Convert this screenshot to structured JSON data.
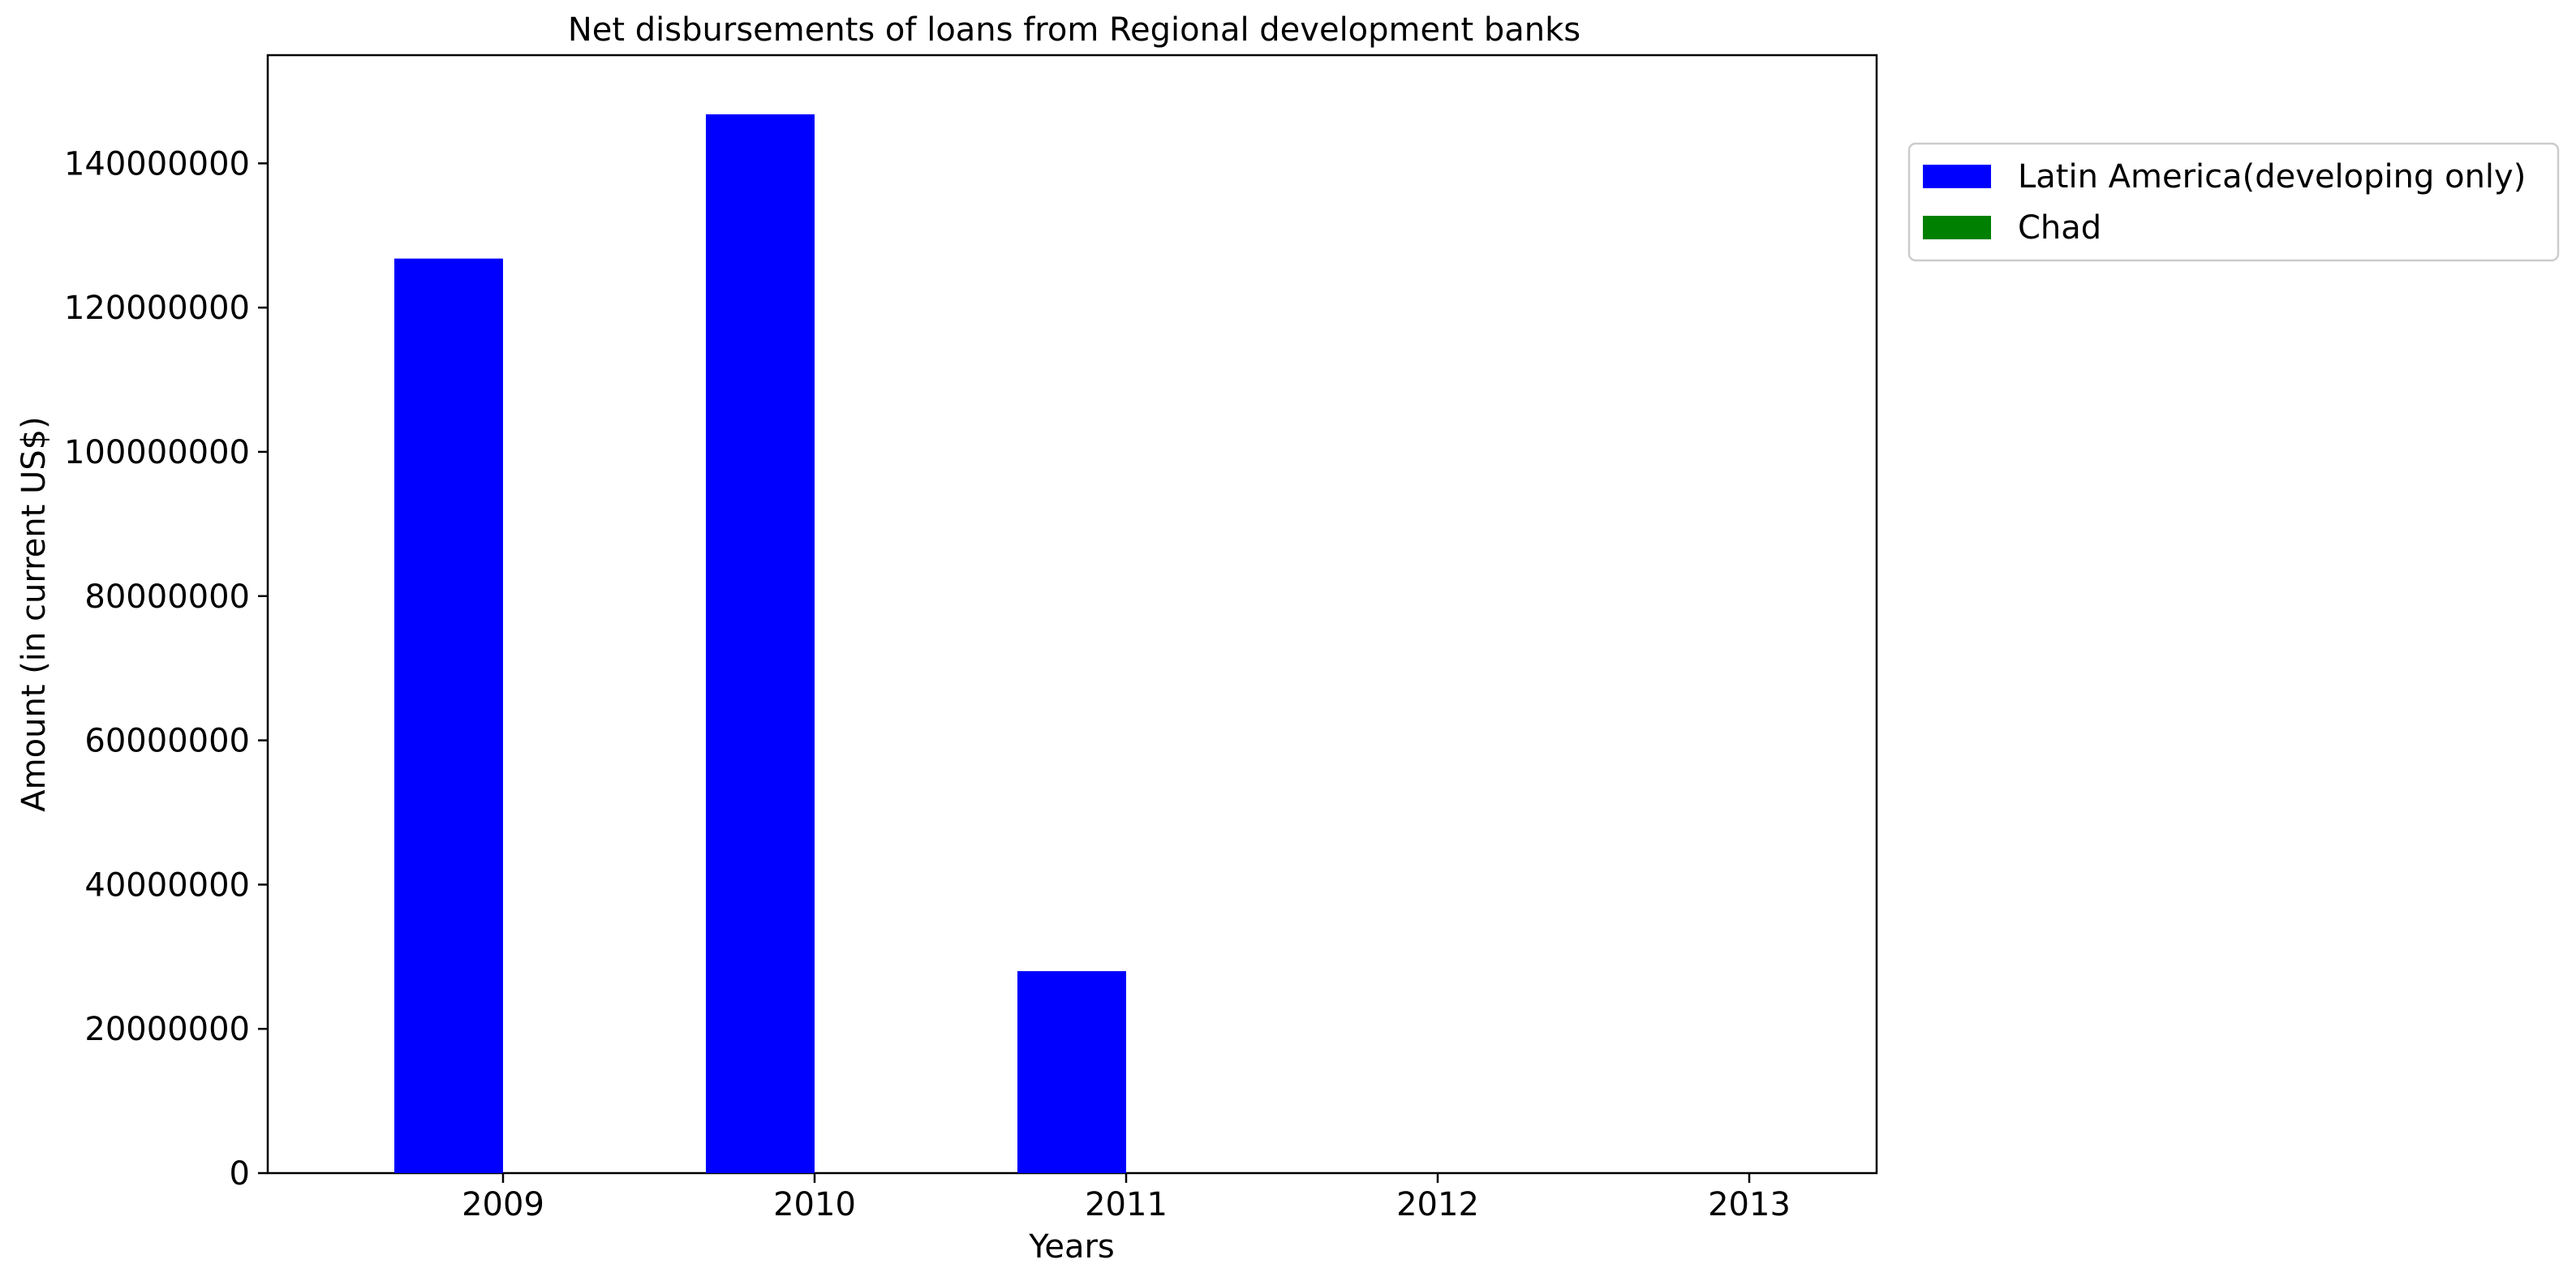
{
  "chart_data": {
    "type": "bar",
    "title": "Net disbursements of loans from Regional development banks",
    "xlabel": "Years",
    "ylabel": "Amount (in current US$)",
    "categories": [
      "2009",
      "2010",
      "2011",
      "2012",
      "2013"
    ],
    "series": [
      {
        "name": "Latin America(developing only)",
        "color": "#0000ff",
        "values": [
          126800000,
          146800000,
          28000000,
          0,
          0
        ]
      },
      {
        "name": "Chad",
        "color": "#008000",
        "values": [
          0,
          0,
          0,
          0,
          0
        ]
      }
    ],
    "ylim": [
      0,
      155000000
    ],
    "yticks": [
      0,
      20000000,
      40000000,
      60000000,
      80000000,
      100000000,
      120000000,
      140000000
    ],
    "ytick_labels": [
      "0",
      "20000000",
      "40000000",
      "60000000",
      "80000000",
      "100000000",
      "120000000",
      "140000000"
    ],
    "grid": false,
    "legend_position": "outside top-right"
  }
}
